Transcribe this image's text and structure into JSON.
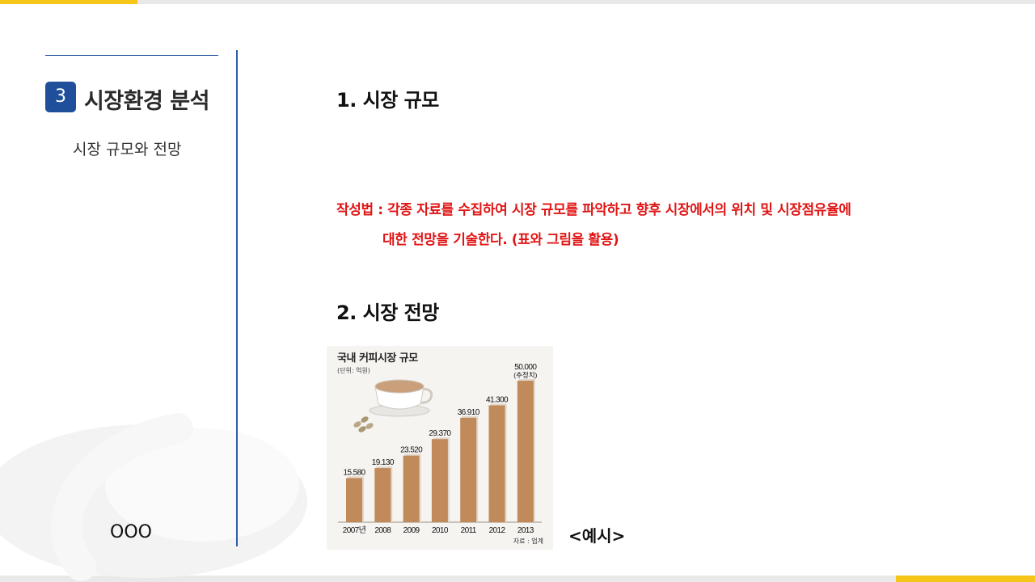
{
  "sidebar": {
    "section_number": "3",
    "section_title": "시장환경 분석",
    "section_subtitle": "시장 규모와 전망",
    "author": "OOO"
  },
  "main": {
    "heading1": "1. 시장 규모",
    "guide_line1": "작성법 : 각종 자료를 수집하여 시장 규모를 파악하고 향후 시장에서의 위치 및 시장점유율에",
    "guide_line2": "대한 전망을 기술한다. (표와 그림을 활용)",
    "heading2": "2. 시장 전망",
    "example_label": "<예시>"
  },
  "colors": {
    "accent_blue": "#1f4e9a",
    "accent_yellow": "#f5c518",
    "guide_red": "#e01515",
    "bar_brown": "#c08a5b"
  },
  "chart_data": {
    "type": "bar",
    "title": "국내 커피시장 규모",
    "unit": "(단위: 억원)",
    "source": "자료 : 업계",
    "categories": [
      "2007년",
      "2008",
      "2009",
      "2010",
      "2011",
      "2012",
      "2013"
    ],
    "values": [
      15580,
      19130,
      23520,
      29370,
      36910,
      41300,
      50000
    ],
    "value_labels": [
      "15.580",
      "19.130",
      "23.520",
      "29.370",
      "36.910",
      "41.300",
      "50.000"
    ],
    "last_value_note": "(추정치)",
    "ylim": [
      0,
      50000
    ],
    "grid": false
  }
}
